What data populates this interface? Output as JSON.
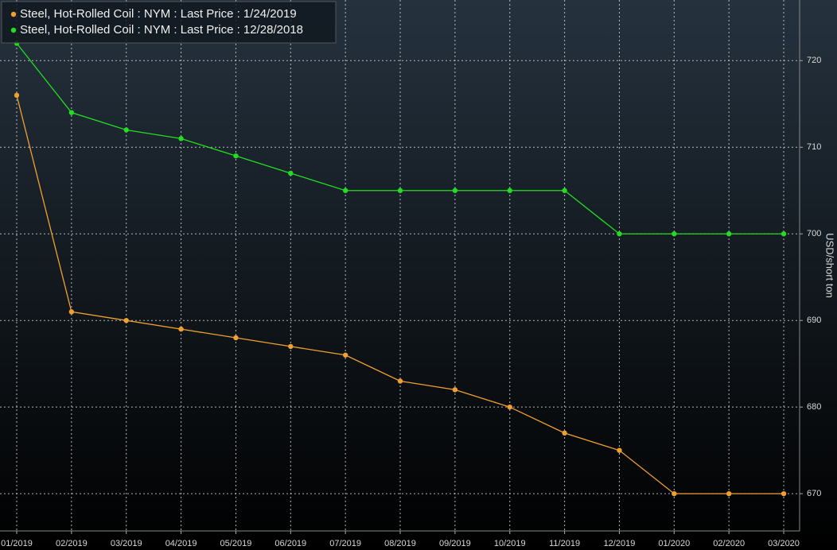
{
  "chart_data": {
    "type": "line",
    "categories": [
      "01/2019",
      "02/2019",
      "03/2019",
      "04/2019",
      "05/2019",
      "06/2019",
      "07/2019",
      "08/2019",
      "09/2019",
      "10/2019",
      "11/2019",
      "12/2019",
      "01/2020",
      "02/2020",
      "03/2020"
    ],
    "series": [
      {
        "name": "Steel, Hot-Rolled Coil : NYM : Last Price : 1/24/2019",
        "color": "#f0a030",
        "values": [
          716,
          691,
          690,
          689,
          688,
          687,
          686,
          683,
          682,
          680,
          677,
          675,
          670,
          670,
          670
        ]
      },
      {
        "name": "Steel, Hot-Rolled Coil : NYM : Last Price : 12/28/2018",
        "color": "#22dd22",
        "values": [
          722,
          714,
          712,
          711,
          709,
          707,
          705,
          705,
          705,
          705,
          705,
          700,
          700,
          700,
          700
        ]
      }
    ],
    "y_label": "USD/short ton",
    "ylim": [
      665.7,
      727
    ],
    "yticks": [
      670,
      680,
      690,
      700,
      710,
      720
    ],
    "grid": true,
    "legend": "top-left"
  }
}
